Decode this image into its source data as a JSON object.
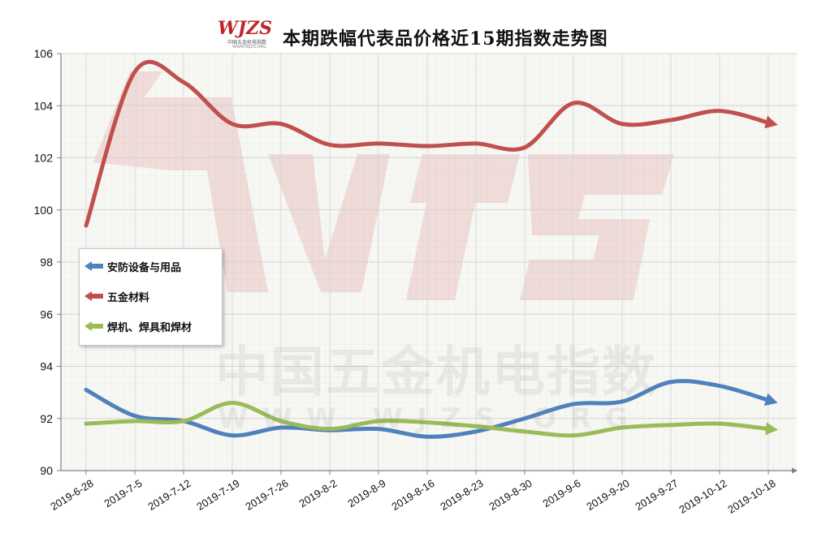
{
  "header": {
    "title": "本期跌幅代表品价格近15期指数走势图",
    "logo": {
      "text": "WJZS",
      "subtitle": "中国五金机电指数",
      "url": "WWW.WJZS.ORG"
    }
  },
  "watermark": {
    "text": "中国五金机电指数",
    "url": "WWW.WJZS.ORG"
  },
  "chart_data": {
    "type": "line",
    "title": "本期跌幅代表品价格近15期指数走势图",
    "xlabel": "",
    "ylabel": "",
    "categories": [
      "2019-6-28",
      "2019-7-5",
      "2019-7-12",
      "2019-7-19",
      "2019-7-26",
      "2019-8-2",
      "2019-8-9",
      "2019-8-16",
      "2019-8-23",
      "2019-8-30",
      "2019-9-6",
      "2019-9-20",
      "2019-9-27",
      "2019-10-12",
      "2019-10-18"
    ],
    "ylim": [
      90,
      106
    ],
    "yticks": [
      90,
      92,
      94,
      96,
      98,
      100,
      102,
      104,
      106
    ],
    "grid": true,
    "legend_position": "left-middle",
    "series": [
      {
        "name": "安防设备与用品",
        "color": "#4f81bd",
        "values": [
          93.1,
          92.1,
          91.9,
          91.35,
          91.65,
          91.55,
          91.6,
          91.3,
          91.5,
          92.0,
          92.55,
          92.65,
          93.4,
          93.25,
          92.7
        ]
      },
      {
        "name": "五金材料",
        "color": "#c0504d",
        "values": [
          99.4,
          105.3,
          104.9,
          103.3,
          103.3,
          102.5,
          102.55,
          102.45,
          102.55,
          102.4,
          104.1,
          103.3,
          103.45,
          103.8,
          103.35
        ]
      },
      {
        "name": "焊机、焊具和焊材",
        "color": "#9bbb59",
        "values": [
          91.8,
          91.9,
          91.9,
          92.6,
          91.9,
          91.6,
          91.9,
          91.85,
          91.7,
          91.5,
          91.35,
          91.65,
          91.75,
          91.8,
          91.6
        ]
      }
    ]
  }
}
